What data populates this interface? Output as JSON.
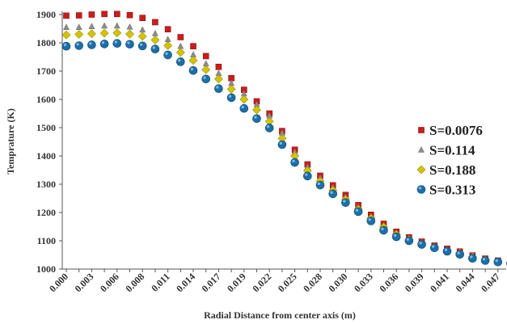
{
  "chart_data": {
    "type": "scatter",
    "title": "",
    "xlabel": "Radial Distance from center axis (m)",
    "ylabel": "Temprature (K)",
    "ylim": [
      1000,
      1900
    ],
    "yticks": [
      "1000",
      "1100",
      "1200",
      "1300",
      "1400",
      "1500",
      "1600",
      "1700",
      "1800",
      "1900"
    ],
    "xticks": [
      "0.000",
      "0.003",
      "0.006",
      "0.008",
      "0.011",
      "0.014",
      "0.017",
      "0.019",
      "0.022",
      "0.025",
      "0.028",
      "0.030",
      "0.033",
      "0.036",
      "0.039",
      "0.041",
      "0.044",
      "0.047"
    ],
    "grid": false,
    "legend_position": "right",
    "x": [
      0.0,
      0.0014,
      0.0028,
      0.0042,
      0.0055,
      0.0069,
      0.0083,
      0.0097,
      0.0111,
      0.0125,
      0.0138,
      0.0152,
      0.0166,
      0.018,
      0.0194,
      0.0208,
      0.0222,
      0.0235,
      0.0249,
      0.0263,
      0.0277,
      0.0291,
      0.0305,
      0.0318,
      0.0332,
      0.0346,
      0.036,
      0.0374,
      0.0388,
      0.0402,
      0.0415,
      0.0429,
      0.0443,
      0.0457,
      0.0471,
      0.0485
    ],
    "series": [
      {
        "name": "S=0.0076",
        "marker": "square",
        "color": "#cc1c1c",
        "values": [
          1896,
          1897,
          1900,
          1902,
          1902,
          1898,
          1888,
          1873,
          1848,
          1820,
          1788,
          1753,
          1715,
          1675,
          1634,
          1593,
          1550,
          1488,
          1422,
          1370,
          1330,
          1296,
          1262,
          1226,
          1192,
          1160,
          1132,
          1112,
          1097,
          1083,
          1072,
          1062,
          1048,
          1037,
          1030,
          1023
        ]
      },
      {
        "name": "S=0.114",
        "marker": "triangle",
        "color": "#8c8c8c",
        "values": [
          1855,
          1855,
          1858,
          1860,
          1860,
          1856,
          1846,
          1833,
          1812,
          1788,
          1758,
          1726,
          1692,
          1657,
          1620,
          1582,
          1542,
          1481,
          1414,
          1361,
          1322,
          1289,
          1255,
          1219,
          1186,
          1154,
          1127,
          1108,
          1093,
          1080,
          1068,
          1058,
          1044,
          1034,
          1027,
          1021
        ]
      },
      {
        "name": "S=0.188",
        "marker": "diamond",
        "color": "#d4c400",
        "values": [
          1828,
          1830,
          1832,
          1834,
          1835,
          1831,
          1823,
          1810,
          1790,
          1766,
          1738,
          1705,
          1672,
          1636,
          1600,
          1563,
          1522,
          1462,
          1400,
          1348,
          1311,
          1279,
          1247,
          1212,
          1180,
          1149,
          1123,
          1104,
          1090,
          1078,
          1066,
          1056,
          1043,
          1033,
          1026,
          1020
        ]
      },
      {
        "name": "S=0.313",
        "marker": "circle",
        "color": "#1b6fa8",
        "values": [
          1788,
          1790,
          1793,
          1796,
          1798,
          1795,
          1789,
          1778,
          1757,
          1733,
          1702,
          1672,
          1638,
          1606,
          1568,
          1532,
          1499,
          1440,
          1377,
          1329,
          1297,
          1266,
          1235,
          1203,
          1170,
          1137,
          1114,
          1100,
          1087,
          1075,
          1063,
          1052,
          1038,
          1030,
          1025,
          1020
        ]
      }
    ]
  }
}
